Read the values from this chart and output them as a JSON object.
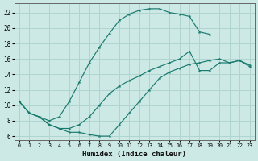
{
  "xlabel": "Humidex (Indice chaleur)",
  "bg_color": "#cce9e5",
  "line_color": "#1a7a6e",
  "grid_color": "#b0d5d0",
  "xlim": [
    -0.5,
    23.5
  ],
  "ylim": [
    5.5,
    23.2
  ],
  "xticks": [
    0,
    1,
    2,
    3,
    4,
    5,
    6,
    7,
    8,
    9,
    10,
    11,
    12,
    13,
    14,
    15,
    16,
    17,
    18,
    19,
    20,
    21,
    22,
    23
  ],
  "yticks": [
    6,
    8,
    10,
    12,
    14,
    16,
    18,
    20,
    22
  ],
  "curve1_x": [
    0,
    1,
    2,
    3,
    4,
    5,
    6,
    7,
    8,
    9,
    10,
    11,
    12,
    13,
    14,
    15,
    16,
    17,
    18,
    19
  ],
  "curve1_y": [
    10.5,
    9.0,
    8.5,
    8.0,
    8.5,
    10.5,
    13.0,
    15.5,
    17.5,
    19.3,
    21.0,
    21.8,
    22.3,
    22.5,
    22.5,
    22.0,
    21.8,
    21.5,
    19.5,
    19.2
  ],
  "curve2_x": [
    0,
    1,
    2,
    3,
    4,
    5,
    6,
    7,
    8,
    9,
    10,
    11,
    12,
    13,
    14,
    15,
    16,
    17,
    18,
    19,
    20,
    21,
    22,
    23
  ],
  "curve2_y": [
    10.5,
    9.0,
    8.5,
    7.5,
    7.0,
    7.0,
    7.5,
    8.5,
    10.0,
    11.5,
    12.5,
    13.2,
    13.8,
    14.5,
    15.0,
    15.5,
    16.0,
    17.0,
    14.5,
    14.5,
    15.5,
    15.5,
    15.8,
    15.0
  ],
  "curve3_x": [
    0,
    1,
    2,
    3,
    4,
    5,
    6,
    7,
    8,
    9,
    10,
    11,
    12,
    13,
    14,
    15,
    16,
    17,
    18,
    19,
    20,
    21,
    22,
    23
  ],
  "curve3_y": [
    10.5,
    9.0,
    8.5,
    7.5,
    7.0,
    6.5,
    6.5,
    6.2,
    6.0,
    6.0,
    7.5,
    9.0,
    10.5,
    12.0,
    13.5,
    14.3,
    14.8,
    15.3,
    15.5,
    15.8,
    16.0,
    15.5,
    15.8,
    15.2
  ]
}
